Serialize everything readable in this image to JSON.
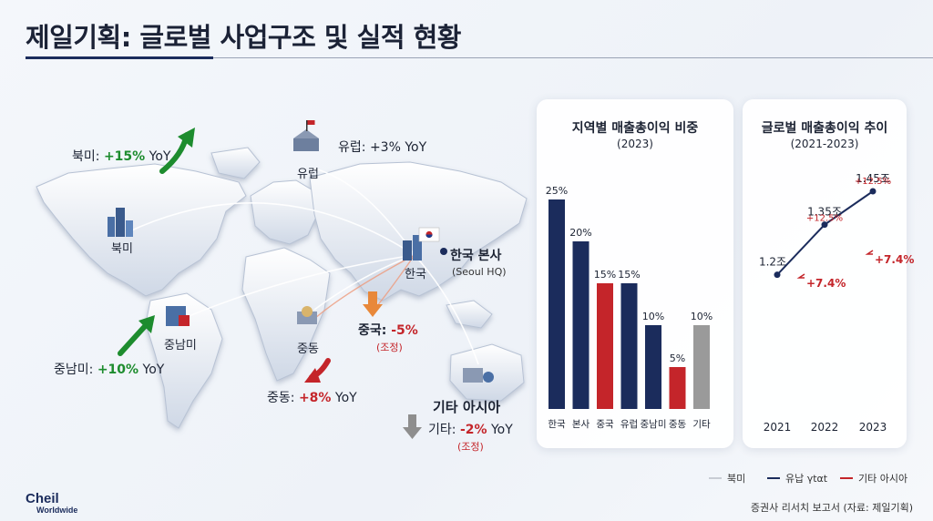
{
  "title": "제일기획: 글로벌 사업구조 및 실적 현황",
  "map": {
    "regions": {
      "north_america": "북미",
      "europe": "유럽",
      "latin_america": "중남미",
      "middle_east": "중동",
      "korea": "한국",
      "other_asia": "기타 아시아"
    },
    "hq": {
      "name": "한국 본사",
      "sub": "(Seoul HQ)"
    },
    "growth": {
      "north_america": {
        "label": "북미: ",
        "value": "+15%",
        "suffix": " YoY"
      },
      "europe": {
        "label": "유럽: ",
        "value": "+3%",
        "suffix": " YoY"
      },
      "latin_america": {
        "label": "중남미: ",
        "value": "+10%",
        "suffix": " YoY"
      },
      "middle_east": {
        "label": "중동: ",
        "value": "+8%",
        "suffix": " YoY"
      },
      "china": {
        "label": "중국: ",
        "value": "-5%",
        "suffix": "",
        "note": "(조정)"
      },
      "other": {
        "label": "기타: ",
        "value": "-2%",
        "suffix": " YoY",
        "note": "(조정)"
      }
    },
    "colors": {
      "up": "#1d8c2e",
      "down_orange": "#e8883a",
      "down_red": "#c4252a",
      "flat": "#8e8e8e"
    }
  },
  "chart_data": [
    {
      "type": "bar",
      "title": "지역별 매출총이익 비중",
      "subtitle": "(2023)",
      "categories": [
        "한국",
        "본사",
        "중국",
        "유럽",
        "중남미",
        "중동",
        "기타"
      ],
      "values": [
        25,
        20,
        15,
        15,
        10,
        5,
        10
      ],
      "value_labels": [
        "25%",
        "20%",
        "15%",
        "15%",
        "10%",
        "5%",
        "10%"
      ],
      "colors": [
        "#1b2c5c",
        "#1b2c5c",
        "#c4252a",
        "#1b2c5c",
        "#1b2c5c",
        "#c4252a",
        "#9a9a9a"
      ],
      "ylim": [
        0,
        25
      ],
      "grid": false
    },
    {
      "type": "line",
      "title": "글로벌 매출총이익 추이",
      "subtitle": "(2021-2023)",
      "x": [
        "2021",
        "2022",
        "2023"
      ],
      "values": [
        1.2,
        1.35,
        1.45
      ],
      "value_labels": [
        "1.2조",
        "1.35조",
        "1.45조"
      ],
      "growth_labels": [
        "+12.5%",
        "+12.5%"
      ],
      "bold_growth_labels": [
        "+7.4%",
        "+7.4%"
      ],
      "ylim": [
        1.0,
        1.6
      ],
      "color": "#1b2c5c",
      "grid": false
    }
  ],
  "legend": [
    {
      "label": "북미",
      "color": "#c8ccd4"
    },
    {
      "label": "유납 γtαt",
      "color": "#1b2c5c"
    },
    {
      "label": "기타 아시아",
      "color": "#c4252a"
    }
  ],
  "footer": {
    "logo_top": "Cheil",
    "logo_bottom": "Worldwide",
    "source": "증권사 리서치 보고서 (자료: 제일기획)"
  }
}
